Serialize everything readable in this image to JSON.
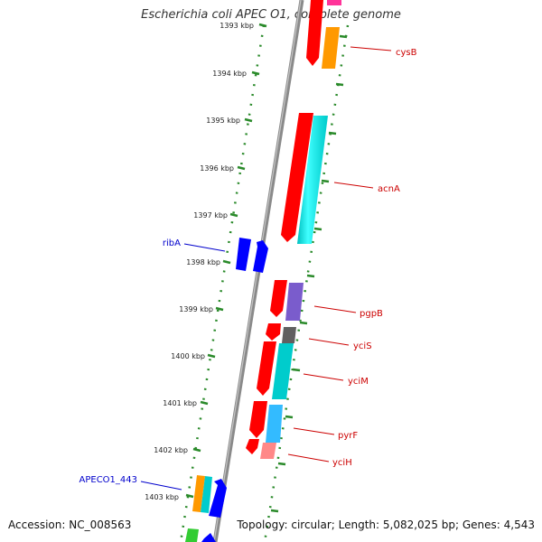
{
  "title": "Escherichia coli APEC O1, complete genome",
  "accession_text": "Accession: NC_008563",
  "stats_text": "Topology: circular; Length: 5,082,025 bp; Genes: 4,543",
  "colors": {
    "tick": "#2a8a2a",
    "backbone": "#8a8a8a",
    "label_red": "#cc0000",
    "label_blue": "#0000cc",
    "red": "#ff0000",
    "orange": "#ff9900",
    "pink": "#ff3399",
    "cyan": "#00ffff",
    "purple": "#7a5ccc",
    "gray": "#606060",
    "teal": "#00cccc",
    "sky": "#33bbff",
    "salmon": "#ff8888",
    "blue": "#0000ff",
    "green": "#33cc33"
  },
  "kbp_ticks": [
    "1393 kbp",
    "1394 kbp",
    "1395 kbp",
    "1396 kbp",
    "1397 kbp",
    "1398 kbp",
    "1399 kbp",
    "1400 kbp",
    "1401 kbp",
    "1402 kbp",
    "1403 kbp"
  ],
  "gene_labels_right": [
    "cysB",
    "acnA",
    "pgpB",
    "yciS",
    "yciM",
    "pyrF",
    "yciH"
  ],
  "gene_labels_left": [
    "ribA",
    "APECO1_443"
  ]
}
